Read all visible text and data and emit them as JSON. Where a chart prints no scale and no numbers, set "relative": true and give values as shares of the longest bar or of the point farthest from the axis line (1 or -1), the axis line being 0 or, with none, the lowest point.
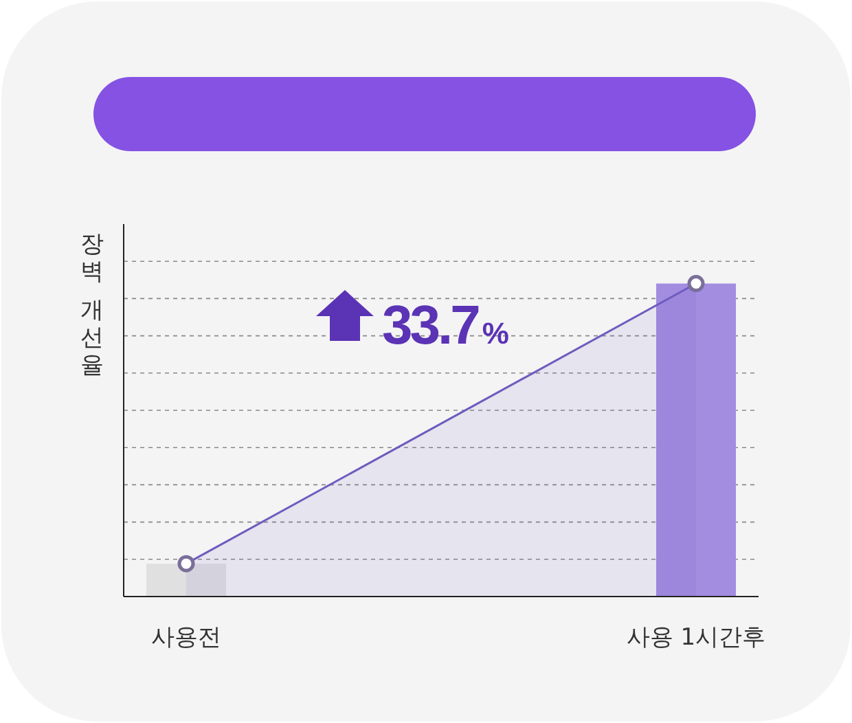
{
  "chart_data": {
    "type": "bar",
    "relative": true,
    "ylabel": "장벽 개선율",
    "categories": [
      "사용전",
      "사용 1시간후"
    ],
    "series": [
      {
        "colors": [
          "#e0e0e0",
          "#a28de1"
        ],
        "values": [
          0.105,
          1
        ]
      },
      {
        "type": "area",
        "color": "#6f5bbf",
        "marker": "circle",
        "values": [
          0.105,
          1
        ]
      }
    ],
    "grid": "y",
    "annotations": [
      "33.7%"
    ]
  }
}
